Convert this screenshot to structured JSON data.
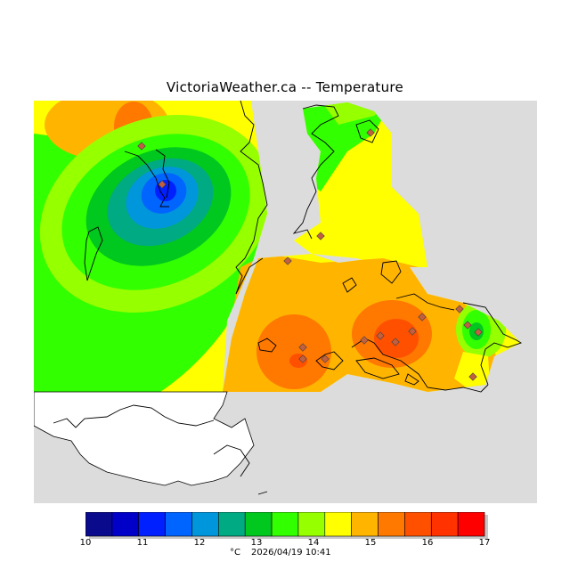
{
  "title": "VictoriaWeather.ca -- Temperature",
  "legend": {
    "unit": "°C",
    "timestamp": "2026/04/19 10:41",
    "ticks": [
      "10",
      "11",
      "12",
      "13",
      "14",
      "15",
      "16",
      "17"
    ],
    "colors": [
      "#0a0a8c",
      "#0000c8",
      "#0020ff",
      "#0064ff",
      "#0096dc",
      "#00aa82",
      "#00c81e",
      "#32ff00",
      "#96ff00",
      "#ffff00",
      "#ffb400",
      "#ff7800",
      "#ff5000",
      "#ff3200",
      "#ff0000"
    ]
  },
  "map_colors": {
    "background": "#dcdcdc",
    "land": "#ffffff",
    "coast": "#000000",
    "station": "#c06040"
  },
  "chart_data": {
    "type": "heatmap",
    "title": "VictoriaWeather.ca -- Temperature",
    "unit": "°C",
    "scale_range": [
      10,
      17
    ],
    "scale_ticks": [
      10,
      11,
      12,
      13,
      14,
      15,
      16,
      17
    ]
  }
}
